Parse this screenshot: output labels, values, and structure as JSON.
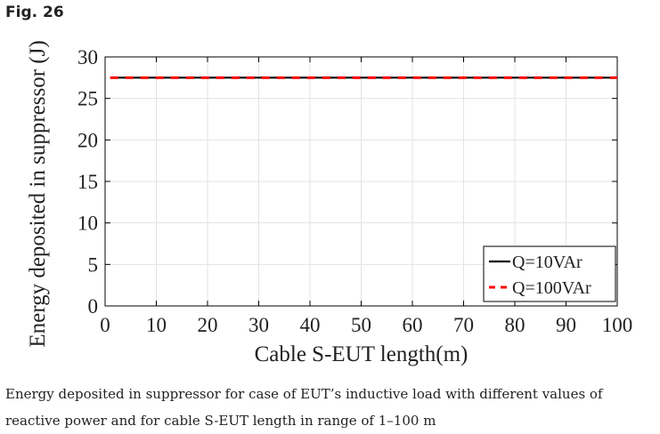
{
  "figure": {
    "label": "Fig. 26",
    "caption": "Energy deposited in suppressor for case of EUT’s inductive load with different values of reactive power and for cable S-EUT length in range of 1–100 m"
  },
  "chart_data": {
    "type": "line",
    "title": "",
    "xlabel": "Cable S-EUT length(m)",
    "ylabel": "Energy deposited in suppressor (J)",
    "xlim": [
      0,
      100
    ],
    "ylim": [
      0,
      30
    ],
    "xticks": [
      0,
      10,
      20,
      30,
      40,
      50,
      60,
      70,
      80,
      90,
      100
    ],
    "yticks": [
      0,
      5,
      10,
      15,
      20,
      25,
      30
    ],
    "grid": true,
    "legend_position": "bottom-right",
    "series": [
      {
        "name": "Q=10VAr",
        "x": [
          1,
          100
        ],
        "y": [
          27.5,
          27.5
        ],
        "color": "#000000",
        "style": "solid"
      },
      {
        "name": "Q=100VAr",
        "x": [
          1,
          100
        ],
        "y": [
          27.5,
          27.5
        ],
        "color": "#ff0000",
        "style": "dashed"
      }
    ]
  }
}
